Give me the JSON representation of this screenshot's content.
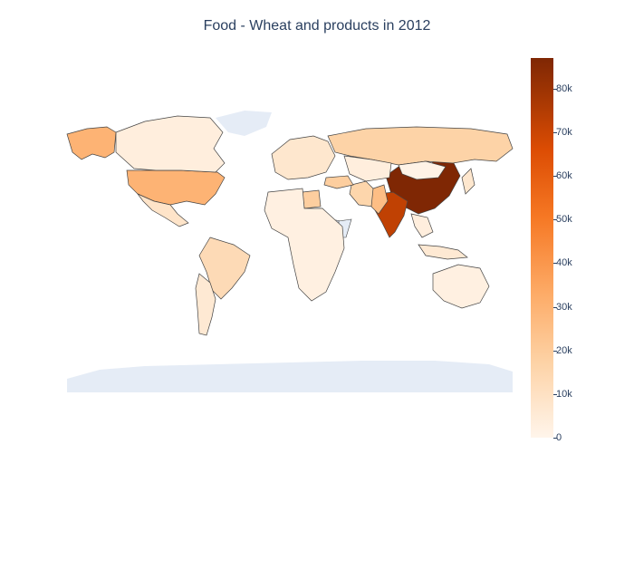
{
  "title": "Food - Wheat and products in 2012",
  "colorscale": [
    "#fff5eb",
    "#fdd2a5",
    "#fdab67",
    "#f67824",
    "#dc4c03",
    "#a33603",
    "#7f2704"
  ],
  "colorbar": {
    "range": [
      0,
      87000
    ],
    "ticks": [
      {
        "value": 0,
        "label": "0"
      },
      {
        "value": 10000,
        "label": "10k"
      },
      {
        "value": 20000,
        "label": "20k"
      },
      {
        "value": 30000,
        "label": "30k"
      },
      {
        "value": 40000,
        "label": "40k"
      },
      {
        "value": 50000,
        "label": "50k"
      },
      {
        "value": 60000,
        "label": "60k"
      },
      {
        "value": 70000,
        "label": "70k"
      },
      {
        "value": 80000,
        "label": "80k"
      }
    ]
  },
  "colors": {
    "land_no_data": "#e5ecf6",
    "ocean": "#ffffff",
    "border": "#444444",
    "title": "#2a3f5f"
  },
  "map_data": {
    "type": "choropleth",
    "variable": "Food - Wheat and products",
    "year": 2012,
    "regions": [
      {
        "name": "China",
        "value": 87000
      },
      {
        "name": "India",
        "value": 65000
      },
      {
        "name": "United States",
        "value": 26000
      },
      {
        "name": "Russia",
        "value": 14000
      },
      {
        "name": "Canada",
        "value": 3000
      },
      {
        "name": "Alaska",
        "value": 26000
      },
      {
        "name": "Brazil",
        "value": 11000
      },
      {
        "name": "Argentina",
        "value": 5000
      },
      {
        "name": "Mexico",
        "value": 7000
      },
      {
        "name": "Egypt",
        "value": 16000
      },
      {
        "name": "Iran",
        "value": 13000
      },
      {
        "name": "Pakistan",
        "value": 22000
      },
      {
        "name": "Turkey",
        "value": 16000
      },
      {
        "name": "Kazakhstan",
        "value": 3000
      },
      {
        "name": "Europe",
        "value": 6000
      },
      {
        "name": "Africa (other)",
        "value": 2000
      },
      {
        "name": "Australia",
        "value": 2000
      },
      {
        "name": "Indonesia",
        "value": 5000
      },
      {
        "name": "Southeast Asia",
        "value": 3000
      },
      {
        "name": "Japan",
        "value": 6000
      },
      {
        "name": "Mongolia",
        "value": 1000
      }
    ],
    "no_data": [
      "Greenland",
      "Antarctica",
      "Sudan",
      "Ethiopia",
      "Kenya",
      "Somalia"
    ]
  }
}
